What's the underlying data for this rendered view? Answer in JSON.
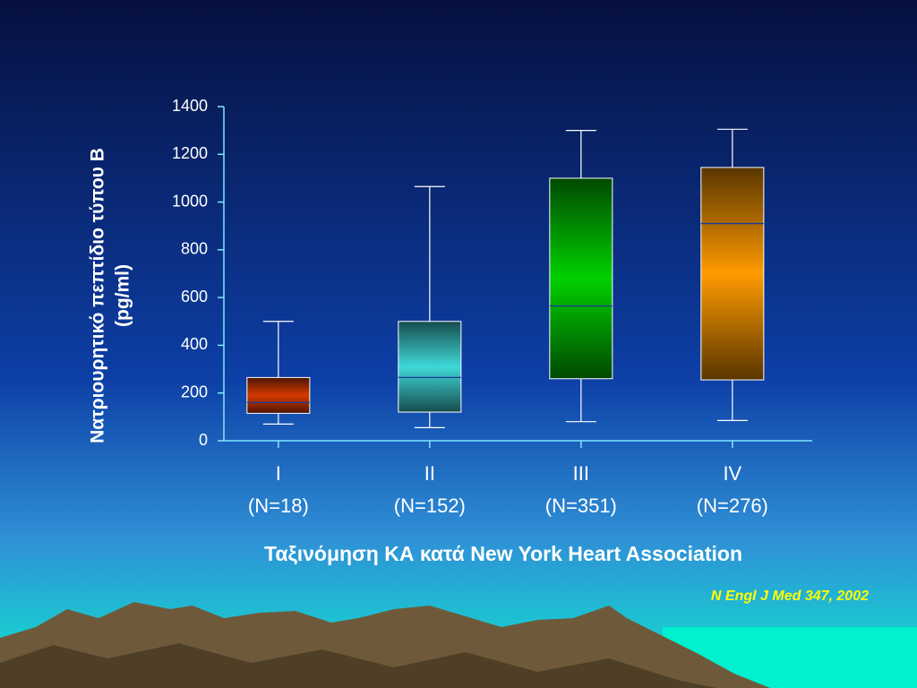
{
  "chart_data": {
    "type": "box",
    "y_label": [
      "Νατριουρητικό πεπτίδιο τύπου Β",
      "(pg/ml)"
    ],
    "x_label": "Ταξινόμηση ΚΑ κατά New York Heart Association",
    "source": "N Engl J Med 347, 2002",
    "categories": [
      "I",
      "II",
      "III",
      "IV"
    ],
    "category_notes": [
      "(N=18)",
      "(N=152)",
      "(N=351)",
      "(N=276)"
    ],
    "boxes": [
      {
        "min": 70,
        "q1": 115,
        "median": 160,
        "q3": 265,
        "max": 500,
        "color": "#d63a00"
      },
      {
        "min": 55,
        "q1": 120,
        "median": 265,
        "q3": 500,
        "max": 1065,
        "color": "#3fd8d8"
      },
      {
        "min": 80,
        "q1": 260,
        "median": 565,
        "q3": 1100,
        "max": 1300,
        "color": "#00d000"
      },
      {
        "min": 85,
        "q1": 255,
        "median": 910,
        "q3": 1145,
        "max": 1305,
        "color": "#ff9a00"
      }
    ],
    "ylim": [
      0,
      1400
    ],
    "yticks": [
      0,
      200,
      400,
      600,
      800,
      1000,
      1200,
      1400
    ]
  }
}
